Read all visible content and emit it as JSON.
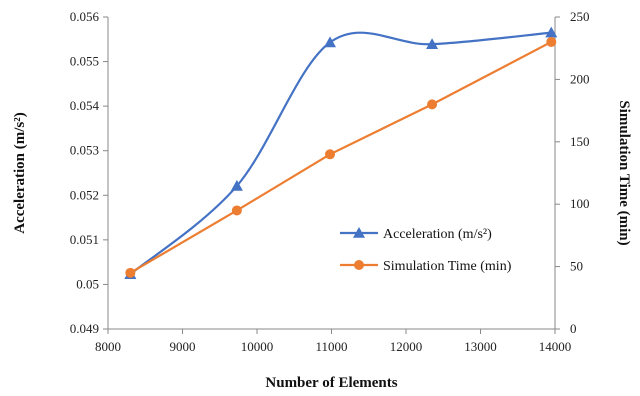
{
  "chart_data": {
    "type": "line",
    "title": "",
    "xlabel": "Number of Elements",
    "ylabel_left": "Acceleration (m/s²)",
    "ylabel_right": "Simulation Time (min)",
    "xlim": [
      8000,
      14000
    ],
    "ylim_left": [
      0.049,
      0.056
    ],
    "ylim_right": [
      0,
      250
    ],
    "x_ticks": [
      8000,
      9000,
      10000,
      11000,
      12000,
      13000,
      14000
    ],
    "y_ticks_left": [
      0.049,
      0.05,
      0.051,
      0.052,
      0.053,
      0.054,
      0.055,
      0.056
    ],
    "y_ticks_right": [
      0,
      50,
      100,
      150,
      200,
      250
    ],
    "grid": false,
    "legend_position": "center-right",
    "series": [
      {
        "name": "Acceleration (m/s²)",
        "axis": "left",
        "marker": "triangle",
        "smooth": true,
        "color": "#4472C4",
        "x": [
          8300,
          9730,
          10980,
          12350,
          13950
        ],
        "y": [
          0.05023,
          0.05221,
          0.05543,
          0.05539,
          0.05565
        ]
      },
      {
        "name": "Simulation Time (min)",
        "axis": "right",
        "marker": "circle",
        "smooth": false,
        "color": "#ED7D31",
        "x": [
          8300,
          9730,
          10980,
          12350,
          13950
        ],
        "y": [
          45,
          95,
          140,
          180,
          230
        ]
      }
    ]
  }
}
